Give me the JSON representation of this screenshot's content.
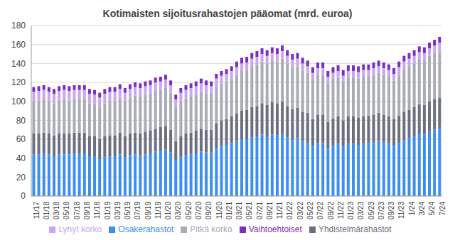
{
  "chart_data": {
    "type": "bar",
    "title": "Kotimaisten sijoitusrahastojen pääomat (mrd. euroa)",
    "stacked": true,
    "grid": true,
    "legend": "bottom",
    "categories": [
      "11/17",
      null,
      "01/18",
      null,
      "03/18",
      null,
      "05/18",
      null,
      "07/18",
      null,
      "09/18",
      null,
      "11/18",
      null,
      "01/19",
      null,
      "03/19",
      null,
      "05/19",
      null,
      "07/19",
      null,
      "09/19",
      null,
      "11/19",
      null,
      "01/20",
      null,
      "03/20",
      null,
      "05/20",
      null,
      "07/20",
      null,
      "09/20",
      null,
      "11/20",
      null,
      "01/21",
      null,
      "03/21",
      null,
      "05/21",
      null,
      "07/21",
      null,
      "09/21",
      null,
      "11/21",
      null,
      "01/22",
      null,
      "03/22",
      null,
      "05/22",
      null,
      "07/22",
      null,
      "09/22",
      null,
      "11/22",
      null,
      "01/23",
      null,
      "03/23",
      null,
      "05/23",
      null,
      "07/23",
      null,
      "09/23",
      null,
      "11/23",
      null,
      "1/24",
      null,
      "3/24",
      null,
      "5/24",
      null,
      "7/24"
    ],
    "ylim": [
      0,
      180
    ],
    "yticks": [
      0,
      20,
      40,
      60,
      80,
      100,
      120,
      140,
      160,
      180
    ],
    "series": [
      {
        "name": "Osakerahastot",
        "color": "#3d8ef0",
        "values": [
          44,
          44,
          45,
          44,
          42,
          44,
          44,
          44,
          45,
          45,
          45,
          42,
          42,
          39,
          41,
          42,
          42,
          44,
          41,
          43,
          44,
          43,
          44,
          45,
          47,
          48,
          49,
          46,
          37,
          41,
          43,
          44,
          45,
          47,
          46,
          46,
          51,
          53,
          54,
          56,
          58,
          60,
          60,
          62,
          63,
          65,
          63,
          65,
          64,
          66,
          62,
          60,
          61,
          58,
          57,
          52,
          56,
          56,
          50,
          53,
          55,
          52,
          55,
          55,
          54,
          55,
          56,
          57,
          58,
          57,
          55,
          53,
          56,
          59,
          61,
          63,
          66,
          65,
          68,
          70,
          71
        ]
      },
      {
        "name": "Yhdistelmärahastot",
        "color": "#6b6f80",
        "values": [
          22,
          22,
          22,
          22,
          22,
          22,
          22,
          22,
          22,
          22,
          22,
          21,
          21,
          21,
          22,
          22,
          22,
          23,
          22,
          23,
          23,
          23,
          24,
          24,
          24,
          25,
          25,
          24,
          21,
          22,
          23,
          23,
          24,
          24,
          24,
          24,
          26,
          27,
          27,
          28,
          29,
          30,
          31,
          32,
          32,
          33,
          33,
          34,
          34,
          34,
          33,
          32,
          32,
          31,
          31,
          29,
          30,
          30,
          28,
          29,
          29,
          28,
          29,
          29,
          29,
          29,
          29,
          29,
          30,
          29,
          29,
          28,
          29,
          30,
          30,
          31,
          31,
          31,
          32,
          32,
          33
        ]
      },
      {
        "name": "Pitkä korko",
        "color": "#a9abb6",
        "values": [
          34,
          35,
          35,
          34,
          34,
          35,
          36,
          35,
          35,
          35,
          35,
          35,
          34,
          34,
          35,
          36,
          36,
          36,
          37,
          38,
          39,
          39,
          39,
          39,
          40,
          39,
          40,
          39,
          36,
          37,
          37,
          38,
          38,
          39,
          38,
          38,
          39,
          39,
          40,
          40,
          41,
          42,
          42,
          43,
          44,
          44,
          44,
          44,
          44,
          45,
          45,
          44,
          44,
          43,
          42,
          42,
          42,
          42,
          41,
          41,
          41,
          40,
          41,
          41,
          41,
          42,
          41,
          42,
          42,
          42,
          42,
          41,
          43,
          45,
          46,
          46,
          47,
          47,
          48,
          48,
          48
        ]
      },
      {
        "name": "Lyhyt korko",
        "color": "#c9a6f0",
        "values": [
          10,
          10,
          10,
          10,
          10,
          10,
          10,
          10,
          10,
          10,
          10,
          10,
          10,
          10,
          10,
          10,
          10,
          10,
          9,
          9,
          9,
          9,
          9,
          9,
          9,
          9,
          9,
          8,
          8,
          9,
          9,
          9,
          9,
          9,
          9,
          8,
          8,
          8,
          8,
          8,
          8,
          8,
          8,
          8,
          8,
          8,
          8,
          8,
          8,
          8,
          8,
          8,
          8,
          8,
          7,
          7,
          7,
          7,
          7,
          7,
          7,
          7,
          7,
          7,
          7,
          7,
          7,
          7,
          7,
          7,
          7,
          7,
          8,
          8,
          8,
          8,
          8,
          8,
          8,
          9,
          10
        ]
      },
      {
        "name": "Vaihtoehtoiset",
        "color": "#7a2fc0",
        "values": [
          5,
          5,
          5,
          5,
          5,
          5,
          5,
          5,
          5,
          5,
          5,
          5,
          5,
          5,
          5,
          5,
          5,
          5,
          5,
          5,
          5,
          5,
          5,
          5,
          5,
          5,
          5,
          5,
          5,
          5,
          5,
          5,
          5,
          5,
          5,
          5,
          5,
          5,
          5,
          5,
          6,
          6,
          6,
          6,
          6,
          6,
          6,
          6,
          6,
          6,
          6,
          6,
          6,
          6,
          6,
          6,
          6,
          6,
          6,
          6,
          6,
          6,
          6,
          6,
          6,
          6,
          6,
          6,
          6,
          6,
          6,
          6,
          6,
          6,
          6,
          6,
          6,
          6,
          6,
          6,
          6
        ]
      }
    ]
  }
}
